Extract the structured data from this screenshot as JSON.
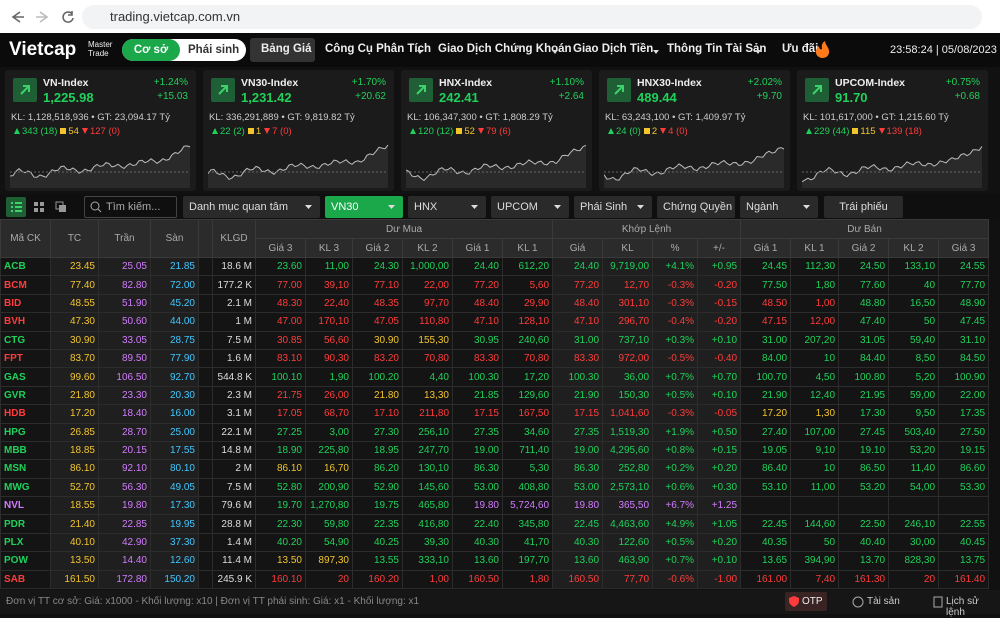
{
  "browser": {
    "url": "trading.vietcap.com.vn"
  },
  "nav": {
    "logo": "Vietcap",
    "logo_sub": "Master Trade",
    "market_tabs": [
      "Cơ sở",
      "Phái sinh"
    ],
    "menu": [
      "Bảng Giá",
      "Công Cụ Phân Tích",
      "Giao Dịch Chứng Khoán",
      "Giao Dịch Tiền",
      "Thông Tin Tài Sản",
      "Ưu đãi"
    ],
    "clock": "23:58:24 | 05/08/2023"
  },
  "indices": [
    {
      "name": "VN-Index",
      "value": "1,225.98",
      "change_pct": "+1.24%",
      "change": "+15.03",
      "volume": "KL: 1,128,518,936 • GT: 23,094.17 Tỷ",
      "up": "343 (18)",
      "flat": "54",
      "down": "127 (0)"
    },
    {
      "name": "VN30-Index",
      "value": "1,231.42",
      "change_pct": "+1.70%",
      "change": "+20.62",
      "volume": "KL: 336,291,889 • GT: 9,819.82 Tỷ",
      "up": "22 (2)",
      "flat": "1",
      "down": "7 (0)"
    },
    {
      "name": "HNX-Index",
      "value": "242.41",
      "change_pct": "+1.10%",
      "change": "+2.64",
      "volume": "KL: 106,347,300 • GT: 1,808.29 Tỷ",
      "up": "120 (12)",
      "flat": "52",
      "down": "79 (6)"
    },
    {
      "name": "HNX30-Index",
      "value": "489.44",
      "change_pct": "+2.02%",
      "change": "+9.70",
      "volume": "KL: 63,243,100 • GT: 1,409.97 Tỷ",
      "up": "24 (0)",
      "flat": "2",
      "down": "4 (0)"
    },
    {
      "name": "UPCOM-Index",
      "value": "91.70",
      "change_pct": "+0.75%",
      "change": "+0.68",
      "volume": "KL: 101,617,000 • GT: 1,215.60 Tỷ",
      "up": "229 (44)",
      "flat": "115",
      "down": "139 (18)"
    }
  ],
  "toolbar": {
    "search_placeholder": "Tìm kiếm...",
    "filters": [
      "Danh mục quan tâm",
      "VN30",
      "HNX",
      "UPCOM",
      "Phái Sinh",
      "Chứng Quyền",
      "Ngành",
      "Trái phiếu"
    ]
  },
  "table": {
    "head": [
      "Mã CK",
      "TC",
      "Trần",
      "Sàn",
      "KLGD"
    ],
    "groups": [
      "Dư Mua",
      "Khớp Lệnh",
      "Dư Bán"
    ],
    "sub": [
      "Giá 3",
      "KL 3",
      "Giá 2",
      "KL 2",
      "Giá 1",
      "KL 1",
      "Giá",
      "KL",
      "%",
      "+/-",
      "Giá 1",
      "KL 1",
      "Giá 2",
      "KL 2",
      "Giá 3"
    ],
    "rows": [
      [
        "ACB",
        "23.45",
        "25.05",
        "21.85",
        "18.6 M",
        "23.60",
        "11,00",
        "24.30",
        "1,000,00",
        "24.40",
        "612,20",
        "24.40",
        "9,719,00",
        "+4.1%",
        "+0.95",
        "24.45",
        "112,30",
        "24.50",
        "133,10",
        "24.55"
      ],
      [
        "BCM",
        "77.40",
        "82.80",
        "72.00",
        "177.2 K",
        "77.00",
        "39,10",
        "77.10",
        "22,00",
        "77.20",
        "5,60",
        "77.20",
        "12,70",
        "-0.3%",
        "-0.20",
        "77.50",
        "1,80",
        "77.60",
        "40",
        "77.70"
      ],
      [
        "BID",
        "48.55",
        "51.90",
        "45.20",
        "2.1 M",
        "48.30",
        "22,40",
        "48.35",
        "97,70",
        "48.40",
        "29,90",
        "48.40",
        "301,10",
        "-0.3%",
        "-0.15",
        "48.50",
        "1,00",
        "48.80",
        "16,50",
        "48.90"
      ],
      [
        "BVH",
        "47.30",
        "50.60",
        "44.00",
        "1 M",
        "47.00",
        "170,10",
        "47.05",
        "110,80",
        "47.10",
        "128,10",
        "47.10",
        "296,70",
        "-0.4%",
        "-0.20",
        "47.15",
        "12,00",
        "47.40",
        "50",
        "47.45"
      ],
      [
        "CTG",
        "30.90",
        "33.05",
        "28.75",
        "7.5 M",
        "30.85",
        "56,60",
        "30.90",
        "155,30",
        "30.95",
        "240,60",
        "31.00",
        "737,10",
        "+0.3%",
        "+0.10",
        "31.00",
        "207,20",
        "31.05",
        "59,40",
        "31.10"
      ],
      [
        "FPT",
        "83.70",
        "89.50",
        "77.90",
        "1.6 M",
        "83.10",
        "90,30",
        "83.20",
        "70,80",
        "83.30",
        "70,80",
        "83.30",
        "972,00",
        "-0.5%",
        "-0.40",
        "84.00",
        "10",
        "84.40",
        "8,50",
        "84.50"
      ],
      [
        "GAS",
        "99.60",
        "106.50",
        "92.70",
        "544.8 K",
        "100.10",
        "1,90",
        "100.20",
        "4,40",
        "100.30",
        "17,20",
        "100.30",
        "36,00",
        "+0.7%",
        "+0.70",
        "100.70",
        "4,50",
        "100.80",
        "5,20",
        "100.90"
      ],
      [
        "GVR",
        "21.80",
        "23.30",
        "20.30",
        "2.3 M",
        "21.75",
        "26,00",
        "21.80",
        "13,30",
        "21.85",
        "129,60",
        "21.90",
        "150,30",
        "+0.5%",
        "+0.10",
        "21.90",
        "12,40",
        "21.95",
        "59,00",
        "22.00"
      ],
      [
        "HDB",
        "17.20",
        "18.40",
        "16.00",
        "3.1 M",
        "17.05",
        "68,70",
        "17.10",
        "211,80",
        "17.15",
        "167,50",
        "17.15",
        "1,041,60",
        "-0.3%",
        "-0.05",
        "17.20",
        "1,30",
        "17.30",
        "9,50",
        "17.35"
      ],
      [
        "HPG",
        "26.85",
        "28.70",
        "25.00",
        "22.1 M",
        "27.25",
        "3,00",
        "27.30",
        "256,10",
        "27.35",
        "34,60",
        "27.35",
        "1,519,30",
        "+1.9%",
        "+0.50",
        "27.40",
        "107,00",
        "27.45",
        "503,40",
        "27.50"
      ],
      [
        "MBB",
        "18.85",
        "20.15",
        "17.55",
        "14.8 M",
        "18.90",
        "225,80",
        "18.95",
        "247,70",
        "19.00",
        "711,40",
        "19.00",
        "4,295,60",
        "+0.8%",
        "+0.15",
        "19.05",
        "9,10",
        "19.10",
        "53,20",
        "19.15"
      ],
      [
        "MSN",
        "86.10",
        "92.10",
        "80.10",
        "2 M",
        "86.10",
        "16,70",
        "86.20",
        "130,10",
        "86.30",
        "5,30",
        "86.30",
        "252,80",
        "+0.2%",
        "+0.20",
        "86.40",
        "10",
        "86.50",
        "11,40",
        "86.60"
      ],
      [
        "MWG",
        "52.70",
        "56.30",
        "49.05",
        "7.5 M",
        "52.80",
        "200,90",
        "52.90",
        "145,60",
        "53.00",
        "408,80",
        "53.00",
        "2,573,10",
        "+0.6%",
        "+0.30",
        "53.10",
        "11,00",
        "53.20",
        "54,00",
        "53.30"
      ],
      [
        "NVL",
        "18.55",
        "19.80",
        "17.30",
        "79.6 M",
        "19.70",
        "1,270,80",
        "19.75",
        "465,80",
        "19.80",
        "5,724,60",
        "19.80",
        "365,50",
        "+6.7%",
        "+1.25"
      ],
      [
        "PDR",
        "21.40",
        "22.85",
        "19.95",
        "28.8 M",
        "22.30",
        "59,80",
        "22.35",
        "416,80",
        "22.40",
        "345,80",
        "22.45",
        "4,463,60",
        "+4.9%",
        "+1.05",
        "22.45",
        "144,60",
        "22.50",
        "246,10",
        "22.55"
      ],
      [
        "PLX",
        "40.10",
        "42.90",
        "37.30",
        "1.4 M",
        "40.20",
        "54,90",
        "40.25",
        "39,30",
        "40.30",
        "41,70",
        "40.30",
        "122,60",
        "+0.5%",
        "+0.20",
        "40.35",
        "50",
        "40.40",
        "30,00",
        "40.45"
      ],
      [
        "POW",
        "13.50",
        "14.40",
        "12.60",
        "11.4 M",
        "13.50",
        "897,30",
        "13.55",
        "333,10",
        "13.60",
        "197,70",
        "13.60",
        "463,90",
        "+0.7%",
        "+0.10",
        "13.65",
        "394,90",
        "13.70",
        "828,30",
        "13.75"
      ],
      [
        "SAB",
        "161.50",
        "172.80",
        "150.20",
        "245.9 K",
        "160.10",
        "20",
        "160.20",
        "1,00",
        "160.50",
        "1,80",
        "160.50",
        "77,70",
        "-0.6%",
        "-1.00",
        "161.00",
        "7,40",
        "161.30",
        "20",
        "161.40"
      ]
    ]
  },
  "footer": {
    "note": "Đơn vị TT cơ sở: Giá: x1000 - Khối lượng: x10 | Đơn vị TT phái sinh: Giá: x1 - Khối lượng: x1",
    "buttons": [
      "OTP",
      "Tài sản",
      "Lịch sử lệnh"
    ]
  }
}
